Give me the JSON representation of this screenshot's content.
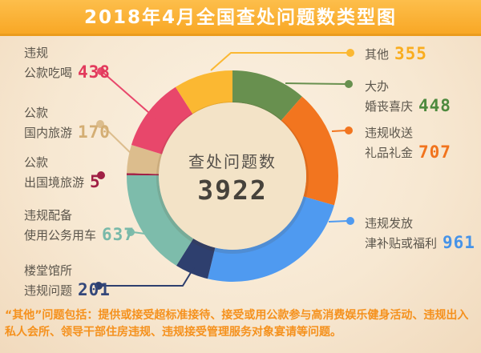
{
  "page": {
    "title": "2018年4月全国查处问题数类型图"
  },
  "center": {
    "label": "查处问题数",
    "value": "3922"
  },
  "footnote": {
    "text": "“其他”问题包括：提供或接受超标准接待、接受或用公款参与高消费娱乐健身活动、违规出入私人会所、领导干部住房违规、违规接受管理服务对象宴请等问题。"
  },
  "colors": {
    "banner_top": "#fdbe4b",
    "banner_bottom": "#f8a623",
    "background": "#f7e8d2",
    "inner_circle": "#f3e3c7",
    "label_text": "#5c564c",
    "footnote_text": "#f5911d",
    "title_text": "#ffffff"
  },
  "chart_data": {
    "type": "pie",
    "variant": "donut",
    "title": "2018年4月全国查处问题数类型图",
    "center_label": "查处问题数",
    "total": 3922,
    "direction": "clockwise",
    "start_angle_deg": 0,
    "legend_position": "callouts",
    "segments": [
      {
        "label": "大办婚丧喜庆",
        "value": 448,
        "color": "#68904f"
      },
      {
        "label": "违规收送礼品礼金",
        "value": 707,
        "color": "#f2751f"
      },
      {
        "label": "违规发放津补贴或福利",
        "value": 961,
        "color": "#4f9af0"
      },
      {
        "label": "楼堂馆所违规问题",
        "value": 201,
        "color": "#2e3f6e"
      },
      {
        "label": "违规配备使用公务用车",
        "value": 637,
        "color": "#7dbcab"
      },
      {
        "label": "公款出国境旅游",
        "value": 5,
        "color": "#a02045"
      },
      {
        "label": "公款国内旅游",
        "value": 170,
        "color": "#dcbd8d"
      },
      {
        "label": "违规公款吃喝",
        "value": 438,
        "color": "#e8476b"
      },
      {
        "label": "其他",
        "value": 355,
        "color": "#fbb832"
      }
    ]
  },
  "callouts": {
    "left": [
      {
        "line1": "违规",
        "line2": "公款吃喝",
        "value": "438",
        "color": "#e23a5c"
      },
      {
        "line1": "公款",
        "line2": "国内旅游",
        "value": "170",
        "color": "#d4ae74"
      },
      {
        "line1": "公款",
        "line2": "出国境旅游",
        "value": "5",
        "color": "#a02045"
      },
      {
        "line1": "违规配备",
        "line2": "使用公务用车",
        "value": "637",
        "color": "#79b9a9"
      },
      {
        "line1": "楼堂馆所",
        "line2": "违规问题",
        "value": "201",
        "color": "#33477a"
      }
    ],
    "right": [
      {
        "line1": "其他",
        "line2": "",
        "value": "355",
        "color": "#f9ad1f"
      },
      {
        "line1": "大办",
        "line2": "婚丧喜庆",
        "value": "448",
        "color": "#4e8a3e"
      },
      {
        "line1": "违规收送",
        "line2": "礼品礼金",
        "value": "707",
        "color": "#f1731d"
      },
      {
        "line1": "违规发放",
        "line2": "津补贴或福利",
        "value": "961",
        "color": "#4693e8"
      }
    ]
  }
}
